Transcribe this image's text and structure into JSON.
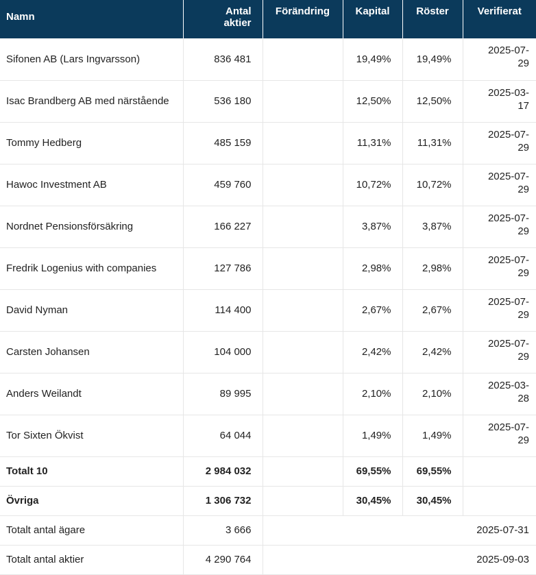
{
  "headers": {
    "name": "Namn",
    "shares_line1": "Antal",
    "shares_line2": "aktier",
    "change": "Förändring",
    "capital": "Kapital",
    "votes": "Röster",
    "verified": "Verifierat"
  },
  "rows": [
    {
      "name": "Sifonen AB (Lars Ingvarsson)",
      "shares": "836 481",
      "change": "",
      "capital": "19,49%",
      "votes": "19,49%",
      "date_a": "2025-07-",
      "date_b": "29"
    },
    {
      "name": "Isac Brandberg AB med närstående",
      "shares": "536 180",
      "change": "",
      "capital": "12,50%",
      "votes": "12,50%",
      "date_a": "2025-03-",
      "date_b": "17"
    },
    {
      "name": "Tommy Hedberg",
      "shares": "485 159",
      "change": "",
      "capital": "11,31%",
      "votes": "11,31%",
      "date_a": "2025-07-",
      "date_b": "29"
    },
    {
      "name": "Hawoc Investment AB",
      "shares": "459 760",
      "change": "",
      "capital": "10,72%",
      "votes": "10,72%",
      "date_a": "2025-07-",
      "date_b": "29"
    },
    {
      "name": "Nordnet Pensionsförsäkring",
      "shares": "166 227",
      "change": "",
      "capital": "3,87%",
      "votes": "3,87%",
      "date_a": "2025-07-",
      "date_b": "29"
    },
    {
      "name": "Fredrik Logenius with companies",
      "shares": "127 786",
      "change": "",
      "capital": "2,98%",
      "votes": "2,98%",
      "date_a": "2025-07-",
      "date_b": "29"
    },
    {
      "name": "David Nyman",
      "shares": "114 400",
      "change": "",
      "capital": "2,67%",
      "votes": "2,67%",
      "date_a": "2025-07-",
      "date_b": "29"
    },
    {
      "name": "Carsten Johansen",
      "shares": "104 000",
      "change": "",
      "capital": "2,42%",
      "votes": "2,42%",
      "date_a": "2025-07-",
      "date_b": "29"
    },
    {
      "name": "Anders Weilandt",
      "shares": "89 995",
      "change": "",
      "capital": "2,10%",
      "votes": "2,10%",
      "date_a": "2025-03-",
      "date_b": "28"
    },
    {
      "name": "Tor Sixten Ökvist",
      "shares": "64 044",
      "change": "",
      "capital": "1,49%",
      "votes": "1,49%",
      "date_a": "2025-07-",
      "date_b": "29"
    }
  ],
  "totals": [
    {
      "label": "Totalt 10",
      "shares": "2 984 032",
      "capital": "69,55%",
      "votes": "69,55%"
    },
    {
      "label": "Övriga",
      "shares": "1 306 732",
      "capital": "30,45%",
      "votes": "30,45%"
    }
  ],
  "summary": [
    {
      "label": "Totalt antal ägare",
      "value": "3 666",
      "date": "2025-07-31"
    },
    {
      "label": "Totalt antal aktier",
      "value": "4 290 764",
      "date": "2025-09-03"
    }
  ]
}
